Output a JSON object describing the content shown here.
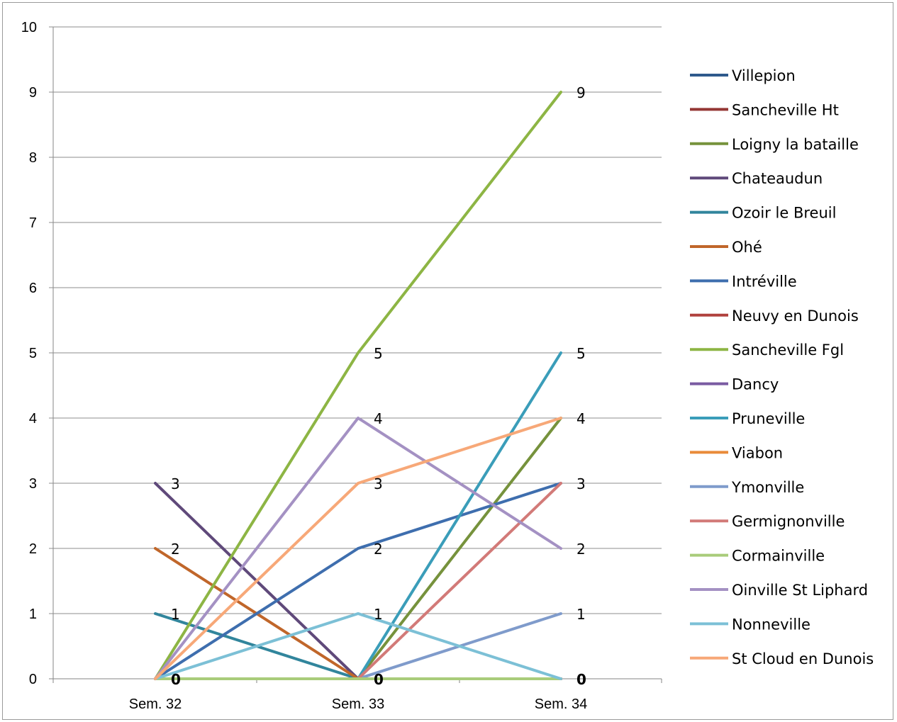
{
  "chart_data": {
    "type": "line",
    "categories": [
      "Sem. 32",
      "Sem. 33",
      "Sem. 34"
    ],
    "ylim": [
      0,
      10
    ],
    "yticks": [
      0,
      1,
      2,
      3,
      4,
      5,
      6,
      7,
      8,
      9,
      10
    ],
    "grid": true,
    "legend_position": "right",
    "series": [
      {
        "name": "Villepion",
        "color": "#2f5a8c",
        "values": [
          0,
          0,
          0
        ]
      },
      {
        "name": "Sancheville Ht",
        "color": "#943634",
        "values": [
          0,
          0,
          0
        ]
      },
      {
        "name": "Loigny la bataille",
        "color": "#76923c",
        "values": [
          0,
          0,
          4
        ]
      },
      {
        "name": "Chateaudun",
        "color": "#5f497a",
        "values": [
          3,
          0,
          0
        ]
      },
      {
        "name": "Ozoir le Breuil",
        "color": "#31859c",
        "values": [
          1,
          0,
          0
        ]
      },
      {
        "name": "Ohé",
        "color": "#c0662a",
        "values": [
          2,
          0,
          0
        ]
      },
      {
        "name": "Intréville",
        "color": "#3e6eae",
        "values": [
          0,
          2,
          3
        ]
      },
      {
        "name": "Neuvy en Dunois",
        "color": "#b0413e",
        "values": [
          0,
          0,
          0
        ]
      },
      {
        "name": "Sancheville Fgl",
        "color": "#8db544",
        "values": [
          0,
          5,
          9
        ]
      },
      {
        "name": "Dancy",
        "color": "#7a5ba2",
        "values": [
          0,
          0,
          0
        ]
      },
      {
        "name": "Pruneville",
        "color": "#3a9db9",
        "values": [
          0,
          0,
          5
        ]
      },
      {
        "name": "Viabon",
        "color": "#e98b3a",
        "values": [
          0,
          0,
          0
        ]
      },
      {
        "name": "Ymonville",
        "color": "#7f9bcb",
        "values": [
          0,
          0,
          1
        ]
      },
      {
        "name": "Germignonville",
        "color": "#d27a78",
        "values": [
          0,
          0,
          3
        ]
      },
      {
        "name": "Cormainville",
        "color": "#a9cc7a",
        "values": [
          0,
          0,
          0
        ]
      },
      {
        "name": "Oinville St Liphard",
        "color": "#a491c3",
        "values": [
          0,
          4,
          2
        ]
      },
      {
        "name": "Nonneville",
        "color": "#7cc0d6",
        "values": [
          0,
          1,
          0
        ]
      },
      {
        "name": "St Cloud en Dunois",
        "color": "#f7a878",
        "values": [
          0,
          3,
          4
        ]
      }
    ],
    "data_labels": [
      {
        "category": "Sem. 32",
        "values": [
          3,
          2,
          1,
          0
        ]
      },
      {
        "category": "Sem. 33",
        "values": [
          5,
          4,
          3,
          2,
          1,
          0
        ]
      },
      {
        "category": "Sem. 34",
        "values": [
          9,
          5,
          4,
          3,
          2,
          1,
          0
        ]
      }
    ]
  }
}
